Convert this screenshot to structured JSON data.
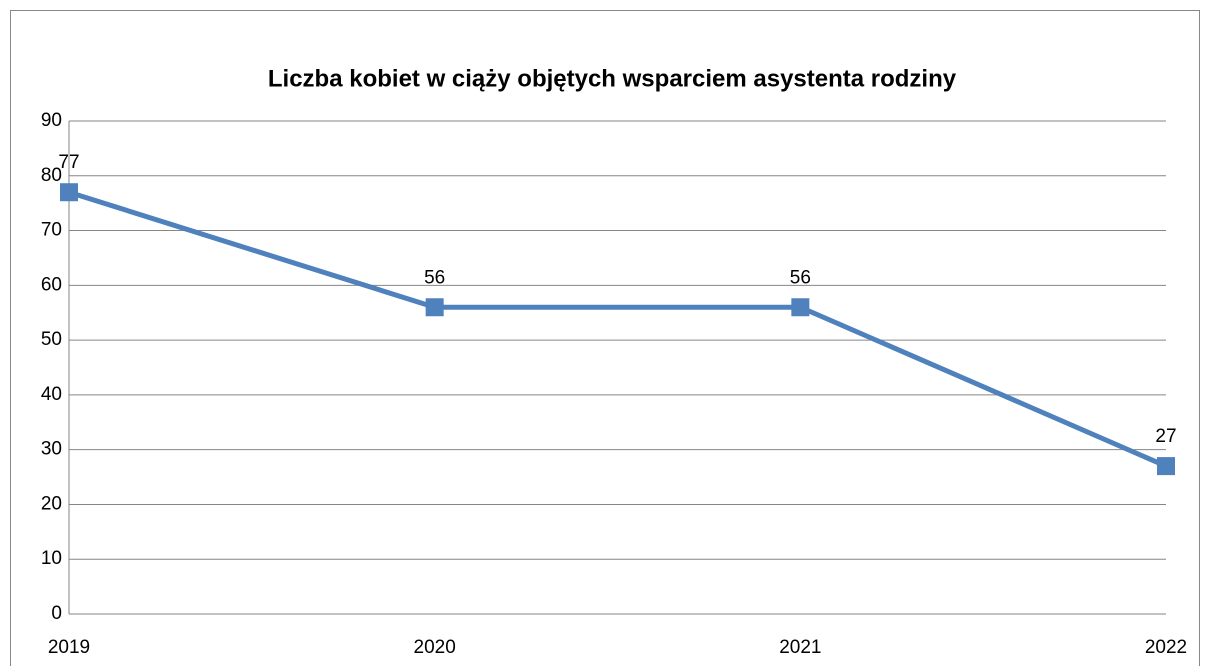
{
  "chart_data": {
    "type": "line",
    "title": "Liczba kobiet w ciąży objętych wsparciem asystenta rodziny",
    "categories": [
      "2019",
      "2020",
      "2021",
      "2022"
    ],
    "series": [
      {
        "name": "Liczba kobiet",
        "color": "#4f81bd",
        "values": [
          77,
          56,
          56,
          27
        ]
      }
    ],
    "ylim": [
      0,
      90
    ],
    "yticks": [
      0,
      10,
      20,
      30,
      40,
      50,
      60,
      70,
      80,
      90
    ],
    "grid": true
  }
}
